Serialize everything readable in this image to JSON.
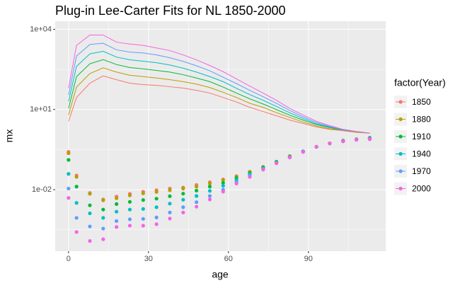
{
  "chart_data": {
    "type": "line+scatter",
    "title": "Plug-in Lee-Carter Fits for NL 1850-2000",
    "xlabel": "age",
    "ylabel": "mx",
    "legend_title": "factor(Year)",
    "legend_position": "right",
    "log_y": true,
    "grid": true,
    "xlim": [
      -5,
      119
    ],
    "xticks": [
      0,
      30,
      60,
      90
    ],
    "ylim": [
      5e-05,
      20000
    ],
    "yticks": [
      {
        "value": 10000,
        "label": "1e+04"
      },
      {
        "value": 10,
        "label": "1e+01"
      },
      {
        "value": 0.01,
        "label": "1e-02"
      }
    ],
    "x": [
      0,
      3,
      8,
      13,
      18,
      23,
      28,
      33,
      38,
      43,
      48,
      53,
      58,
      63,
      68,
      73,
      78,
      83,
      88,
      93,
      98,
      103,
      108,
      113
    ],
    "series": [
      {
        "name": "1850",
        "color": "#F8766D",
        "values": [
          0.26,
          0.034,
          0.0075,
          0.0043,
          0.0055,
          0.007,
          0.0084,
          0.0095,
          0.011,
          0.012,
          0.015,
          0.019,
          0.024,
          0.032,
          0.047,
          0.071,
          0.11,
          0.18,
          0.27,
          0.4,
          0.54,
          0.69,
          0.77,
          0.87
        ],
        "fit": [
          3.6,
          28,
          96,
          180,
          130,
          96,
          85,
          80,
          71,
          63,
          52,
          41,
          28,
          19,
          12,
          8.4,
          5.8,
          4.0,
          3.0,
          2.2,
          1.8,
          1.6,
          1.4,
          1.3
        ]
      },
      {
        "name": "1880",
        "color": "#B79F00",
        "values": [
          0.23,
          0.03,
          0.007,
          0.004,
          0.0048,
          0.0061,
          0.0073,
          0.0082,
          0.0095,
          0.011,
          0.013,
          0.017,
          0.023,
          0.031,
          0.046,
          0.071,
          0.11,
          0.18,
          0.27,
          0.4,
          0.54,
          0.68,
          0.77,
          0.87
        ],
        "fit": [
          6.3,
          69,
          220,
          360,
          250,
          190,
          170,
          150,
          130,
          110,
          89,
          66,
          44,
          28,
          17,
          12,
          7.6,
          5.0,
          3.4,
          2.4,
          1.9,
          1.7,
          1.4,
          1.3
        ]
      },
      {
        "name": "1910",
        "color": "#00BA38",
        "values": [
          0.13,
          0.013,
          0.0026,
          0.0018,
          0.0029,
          0.0035,
          0.0041,
          0.0046,
          0.0057,
          0.0071,
          0.0092,
          0.013,
          0.018,
          0.027,
          0.042,
          0.067,
          0.11,
          0.17,
          0.27,
          0.4,
          0.54,
          0.67,
          0.76,
          0.85
        ],
        "fit": [
          11,
          170,
          510,
          730,
          480,
          370,
          330,
          290,
          250,
          200,
          150,
          110,
          69,
          41,
          25,
          16,
          9.9,
          6.1,
          4.0,
          2.7,
          2.1,
          1.7,
          1.5,
          1.3
        ]
      },
      {
        "name": "1940",
        "color": "#00BFC4",
        "values": [
          0.039,
          0.0032,
          0.0013,
          0.00088,
          0.0015,
          0.0018,
          0.0019,
          0.0022,
          0.003,
          0.0042,
          0.0058,
          0.009,
          0.014,
          0.023,
          0.038,
          0.063,
          0.1,
          0.17,
          0.27,
          0.4,
          0.54,
          0.66,
          0.75,
          0.82
        ],
        "fit": [
          20,
          410,
          1200,
          1500,
          910,
          720,
          640,
          560,
          460,
          350,
          250,
          170,
          110,
          62,
          36,
          22,
          13,
          7.5,
          4.6,
          2.9,
          2.2,
          1.7,
          1.5,
          1.3
        ]
      },
      {
        "name": "1970",
        "color": "#619CFF",
        "values": [
          0.011,
          0.00088,
          0.00042,
          0.00035,
          0.00067,
          0.00078,
          0.00081,
          0.00091,
          0.0014,
          0.0022,
          0.0034,
          0.0058,
          0.01,
          0.019,
          0.033,
          0.059,
          0.1,
          0.16,
          0.26,
          0.4,
          0.54,
          0.65,
          0.74,
          0.79
        ],
        "fit": [
          35,
          1000,
          2700,
          3000,
          1700,
          1400,
          1300,
          1100,
          860,
          630,
          430,
          280,
          160,
          93,
          52,
          30,
          17,
          9.2,
          5.3,
          3.2,
          2.3,
          1.8,
          1.5,
          1.3
        ]
      },
      {
        "name": "2000",
        "color": "#F564E3",
        "values": [
          0.0049,
          0.00026,
          0.00012,
          0.00014,
          0.0004,
          0.00045,
          0.00045,
          0.00051,
          0.00083,
          0.0014,
          0.0023,
          0.0043,
          0.0084,
          0.017,
          0.03,
          0.056,
          0.097,
          0.16,
          0.26,
          0.4,
          0.54,
          0.64,
          0.73,
          0.77
        ],
        "fit": [
          63,
          2500,
          6100,
          6100,
          3300,
          2800,
          2500,
          2000,
          1600,
          1100,
          720,
          440,
          260,
          140,
          75,
          41,
          22,
          11,
          6.2,
          3.6,
          2.5,
          1.8,
          1.5,
          1.3
        ]
      }
    ]
  }
}
